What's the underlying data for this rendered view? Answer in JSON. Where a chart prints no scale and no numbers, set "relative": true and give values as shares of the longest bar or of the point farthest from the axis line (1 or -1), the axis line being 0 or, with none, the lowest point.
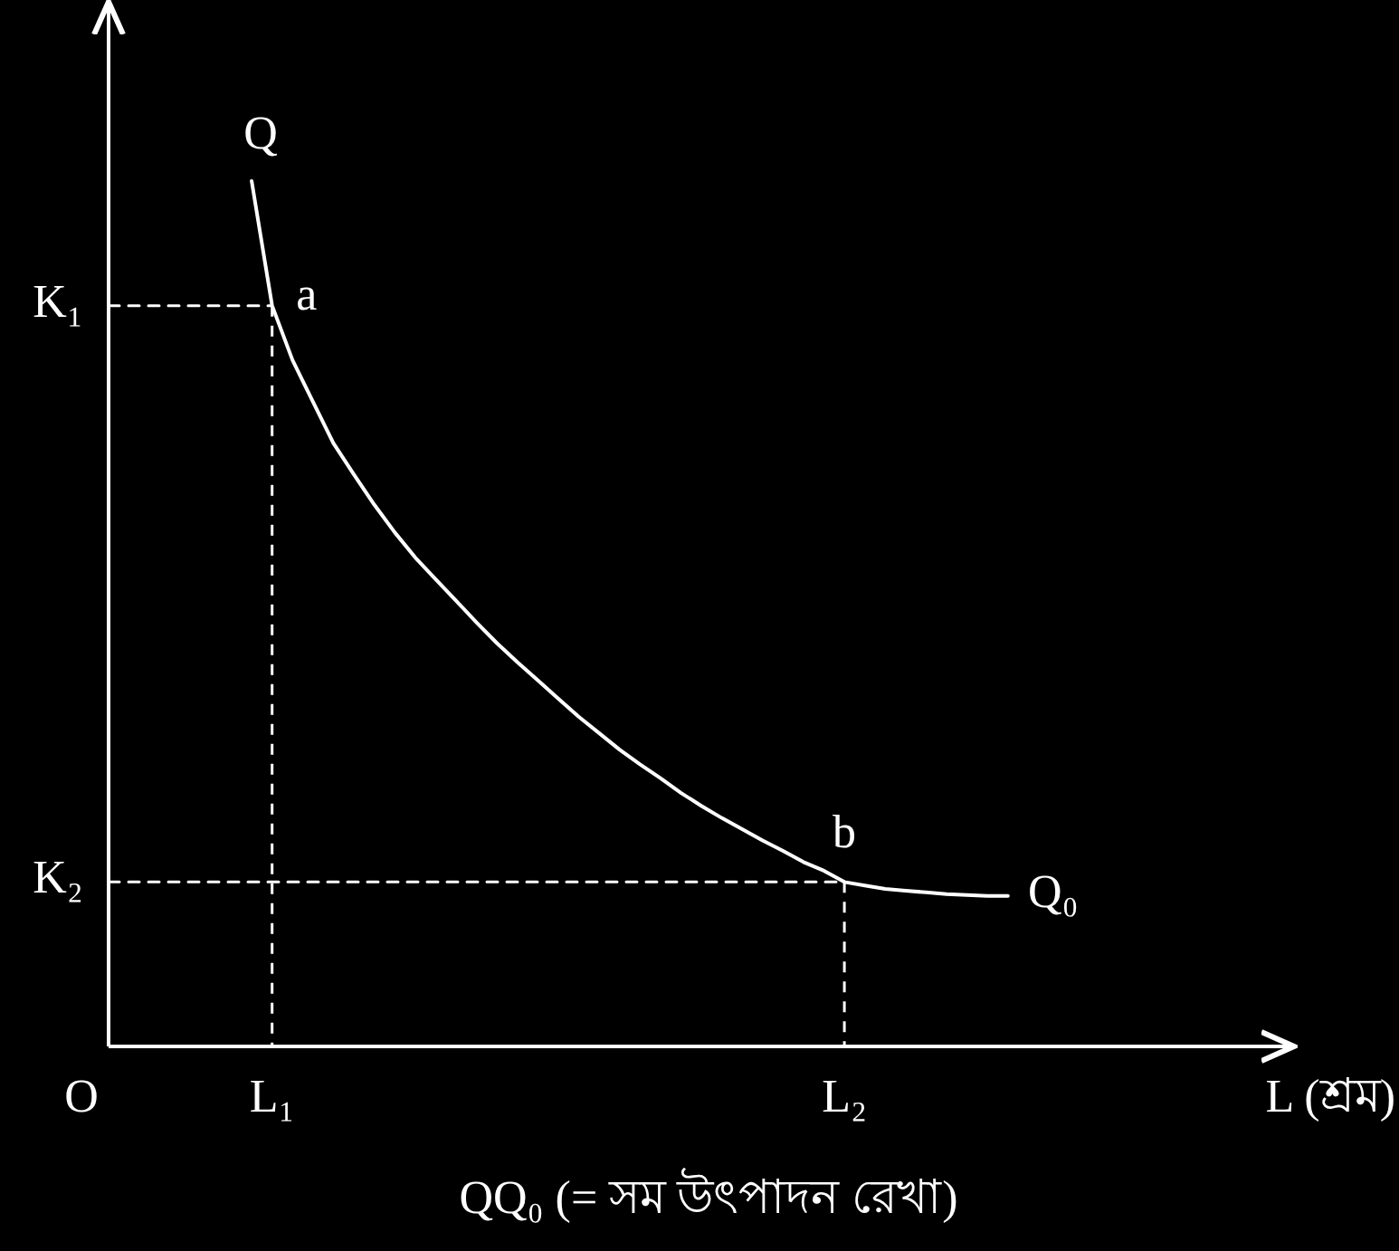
{
  "chart_data": {
    "type": "line",
    "relative": true,
    "xlabel": "L (শ্রম)",
    "marker": "none",
    "categories": [
      null,
      null,
      null,
      null,
      null,
      null,
      null,
      null,
      null,
      null,
      null,
      null,
      null,
      null,
      null,
      null,
      null,
      null,
      null,
      null,
      null,
      null,
      null,
      null,
      null,
      null,
      null,
      null,
      null,
      null,
      null,
      null,
      null,
      null,
      null,
      null,
      null,
      null,
      null,
      null,
      null,
      null,
      null,
      null,
      null,
      null,
      null,
      null,
      null,
      null,
      null,
      null,
      null,
      null,
      null,
      null,
      null,
      null
    ],
    "series": [
      {
        "color": "#ffffff",
        "line_style": "solid",
        "values": [
          null,
          null,
          null,
          null,
          null,
          null,
          null,
          1,
          0.856,
          0.793,
          0.745,
          0.697,
          0.661,
          0.626,
          0.594,
          0.565,
          0.54,
          0.515,
          0.49,
          0.466,
          0.444,
          0.423,
          0.402,
          0.381,
          0.362,
          0.343,
          0.326,
          0.31,
          0.293,
          0.278,
          0.264,
          0.251,
          0.238,
          0.226,
          0.213,
          0.203,
          0.19,
          0.186,
          0.182,
          0.18,
          0.178,
          0.176,
          0.175,
          0.174,
          0.174,
          null,
          null,
          null,
          null,
          null,
          null,
          null,
          null,
          null,
          null,
          null,
          null,
          null
        ]
      },
      {
        "color": "#ffffff",
        "line_style": "dashed",
        "values": [
          0.856,
          0.856,
          0.856,
          0.856,
          0.856,
          0.856,
          0.856,
          0.856,
          0.856,
          null,
          null,
          null,
          null,
          null,
          null,
          null,
          null,
          null,
          null,
          null,
          null,
          null,
          null,
          null,
          null,
          null,
          null,
          null,
          null,
          null,
          null,
          null,
          null,
          null,
          null,
          null,
          null,
          null,
          null,
          null,
          null,
          null,
          null,
          null,
          null,
          null,
          null,
          null,
          null,
          null,
          null,
          null,
          null,
          null,
          null,
          null,
          null,
          null
        ]
      },
      {
        "color": "#ffffff",
        "line_style": "dashed",
        "values": [
          0.19,
          0.19,
          0.19,
          0.19,
          0.19,
          0.19,
          0.19,
          0.19,
          0.19,
          0.19,
          0.19,
          0.19,
          0.19,
          0.19,
          0.19,
          0.19,
          0.19,
          0.19,
          0.19,
          0.19,
          0.19,
          0.19,
          0.19,
          0.19,
          0.19,
          0.19,
          0.19,
          0.19,
          0.19,
          0.19,
          0.19,
          0.19,
          0.19,
          0.19,
          0.19,
          0.19,
          0.19,
          null,
          null,
          null,
          null,
          null,
          null,
          null,
          null,
          null,
          null,
          null,
          null,
          null,
          null,
          null,
          null,
          null,
          null,
          null,
          null,
          null
        ]
      }
    ],
    "annotations": [
      "Q",
      "a",
      "b",
      "Q₀",
      "K₁",
      "K₂",
      "O",
      "L₁",
      "L₂",
      "QQ₀  (= সম উৎপাদন রেখা)"
    ]
  }
}
